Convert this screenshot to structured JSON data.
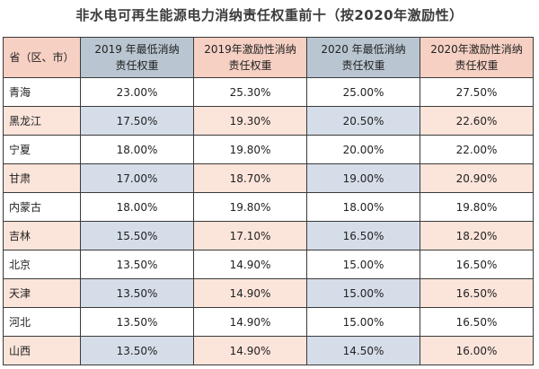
{
  "title": "非水电可再生能源电力消纳责任权重前十（按2020年激励性）",
  "table": {
    "headers": [
      "省（区、市）",
      "2019 年最低消纳\n责任权重",
      "2019年激励性消纳\n责任权重",
      "2020 年最低消纳\n责任权重",
      "2020年激励性消纳\n责任权重"
    ],
    "rows": [
      {
        "province": "青海",
        "v2019_min": "23.00%",
        "v2019_inc": "25.30%",
        "v2020_min": "25.00%",
        "v2020_inc": "27.50%"
      },
      {
        "province": "黑龙江",
        "v2019_min": "17.50%",
        "v2019_inc": "19.30%",
        "v2020_min": "20.50%",
        "v2020_inc": "22.60%"
      },
      {
        "province": "宁夏",
        "v2019_min": "18.00%",
        "v2019_inc": "19.80%",
        "v2020_min": "20.00%",
        "v2020_inc": "22.00%"
      },
      {
        "province": "甘肃",
        "v2019_min": "17.00%",
        "v2019_inc": "18.70%",
        "v2020_min": "19.00%",
        "v2020_inc": "20.90%"
      },
      {
        "province": "内蒙古",
        "v2019_min": "18.00%",
        "v2019_inc": "19.80%",
        "v2020_min": "18.00%",
        "v2020_inc": "19.80%"
      },
      {
        "province": "吉林",
        "v2019_min": "15.50%",
        "v2019_inc": "17.10%",
        "v2020_min": "16.50%",
        "v2020_inc": "18.20%"
      },
      {
        "province": "北京",
        "v2019_min": "13.50%",
        "v2019_inc": "14.90%",
        "v2020_min": "15.00%",
        "v2020_inc": "16.50%"
      },
      {
        "province": "天津",
        "v2019_min": "13.50%",
        "v2019_inc": "14.90%",
        "v2020_min": "15.00%",
        "v2020_inc": "16.50%"
      },
      {
        "province": "河北",
        "v2019_min": "13.50%",
        "v2019_inc": "14.90%",
        "v2020_min": "15.00%",
        "v2020_inc": "16.50%"
      },
      {
        "province": "山西",
        "v2019_min": "13.50%",
        "v2019_inc": "14.90%",
        "v2020_min": "14.50%",
        "v2020_inc": "16.00%"
      }
    ]
  }
}
